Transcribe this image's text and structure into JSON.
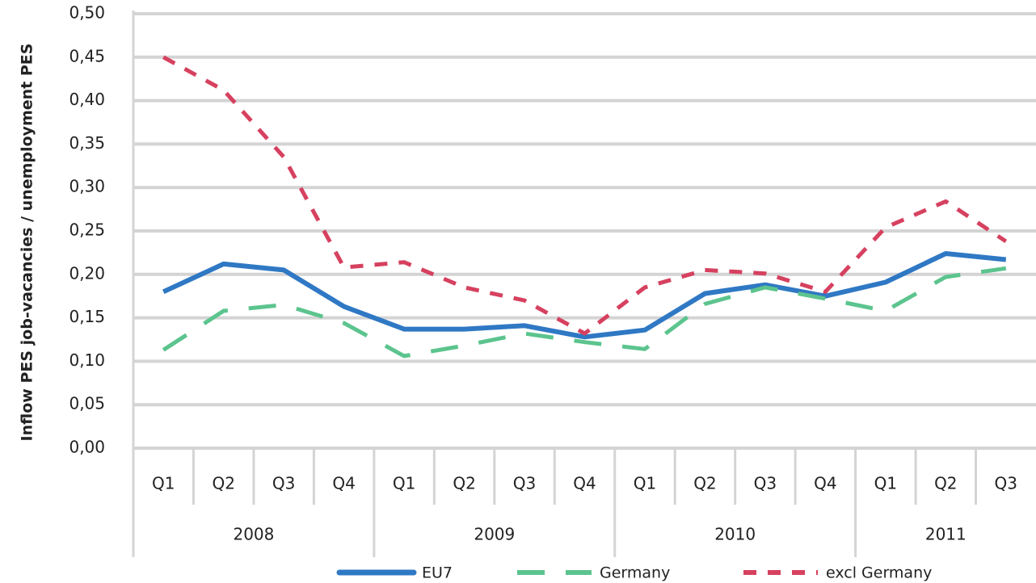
{
  "chart_data": {
    "type": "line",
    "y_label": "Inflow PES job-vacancies / unemployment PES",
    "categories": [
      "Q1",
      "Q2",
      "Q3",
      "Q4",
      "Q1",
      "Q2",
      "Q3",
      "Q4",
      "Q1",
      "Q2",
      "Q3",
      "Q4",
      "Q1",
      "Q2",
      "Q3"
    ],
    "year_labels": [
      "2008",
      "2009",
      "2010",
      "2011"
    ],
    "series": [
      {
        "name": "EU7",
        "color": "#2f78c4",
        "dash": "solid",
        "values": [
          0.18,
          0.212,
          0.205,
          0.163,
          0.137,
          0.137,
          0.141,
          0.128,
          0.136,
          0.178,
          0.188,
          0.175,
          0.191,
          0.224,
          0.217
        ]
      },
      {
        "name": "Germany",
        "color": "#5cc48e",
        "dash": "long",
        "values": [
          0.113,
          0.158,
          0.165,
          0.144,
          0.106,
          0.118,
          0.132,
          0.122,
          0.114,
          0.166,
          0.185,
          0.172,
          0.158,
          0.197,
          0.207
        ]
      },
      {
        "name": "excl Germany",
        "color": "#d6415f",
        "dash": "short",
        "values": [
          0.45,
          0.412,
          0.335,
          0.208,
          0.214,
          0.185,
          0.17,
          0.132,
          0.185,
          0.205,
          0.201,
          0.18,
          0.254,
          0.284,
          0.238
        ]
      }
    ],
    "ylim": [
      0,
      0.5
    ],
    "yticks": [
      {
        "value": 0,
        "label": "0,00"
      },
      {
        "value": 0.05,
        "label": "0,05"
      },
      {
        "value": 0.1,
        "label": "0,10"
      },
      {
        "value": 0.15,
        "label": "0,15"
      },
      {
        "value": 0.2,
        "label": "0,20"
      },
      {
        "value": 0.25,
        "label": "0,25"
      },
      {
        "value": 0.3,
        "label": "0,30"
      },
      {
        "value": 0.35,
        "label": "0,35"
      },
      {
        "value": 0.4,
        "label": "0,40"
      },
      {
        "value": 0.45,
        "label": "0,45"
      },
      {
        "value": 0.5,
        "label": "0,50"
      }
    ],
    "grid": true,
    "legend": "bottom"
  }
}
